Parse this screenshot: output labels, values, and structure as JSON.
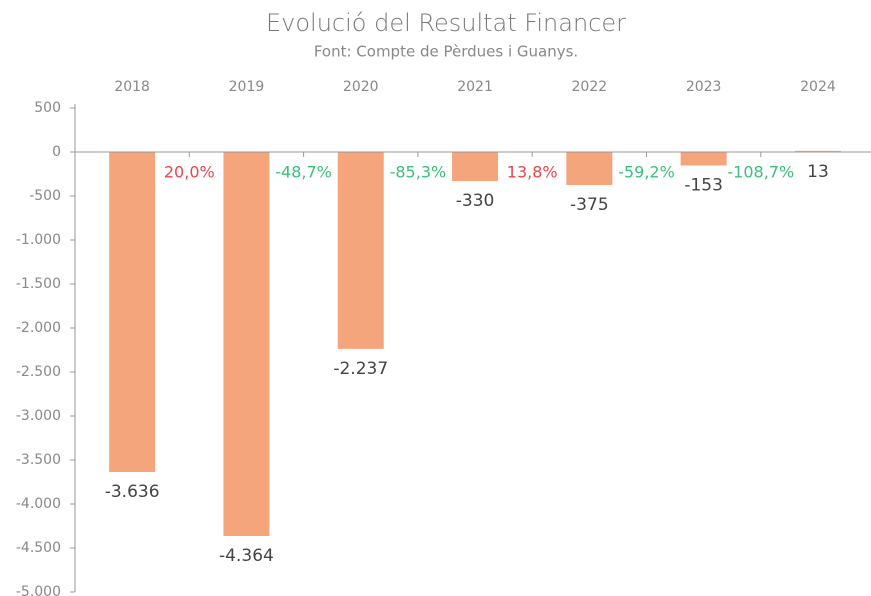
{
  "chart_data": {
    "type": "bar",
    "title": "Evolució del Resultat Financer",
    "subtitle": "Font: Compte de Pèrdues i Guanys.",
    "categories": [
      "2018",
      "2019",
      "2020",
      "2021",
      "2022",
      "2023",
      "2024"
    ],
    "values": [
      -3636,
      -4364,
      -2237,
      -330,
      -375,
      -153,
      13
    ],
    "value_labels": [
      "-3.636",
      "-4.364",
      "-2.237",
      "-330",
      "-375",
      "-153",
      "13"
    ],
    "color": "#f4a57c",
    "changes": [
      20.0,
      -48.7,
      -85.3,
      13.8,
      -59.2,
      -108.7
    ],
    "change_labels": [
      "20,0%",
      "-48,7%",
      "-85,3%",
      "13,8%",
      "-59,2%",
      "-108,7%"
    ],
    "change_colors": {
      "positive": "#e8484c",
      "negative": "#3cbf7c"
    },
    "ylim": [
      -5000,
      500
    ],
    "yticks": [
      500,
      0,
      -500,
      {
        "value": -1000,
        "label": "-1.000"
      },
      {
        "value": -1500,
        "label": "-1.500"
      },
      {
        "value": -2000,
        "label": "-2.000"
      },
      {
        "value": -2500,
        "label": "-2.500"
      },
      {
        "value": -3000,
        "label": "-3.000"
      },
      {
        "value": -3500,
        "label": "-3.500"
      },
      {
        "value": -4000,
        "label": "-4.000"
      },
      {
        "value": -4500,
        "label": "-4.500"
      },
      {
        "value": -5000,
        "label": "-5.000"
      }
    ],
    "grid": false
  }
}
